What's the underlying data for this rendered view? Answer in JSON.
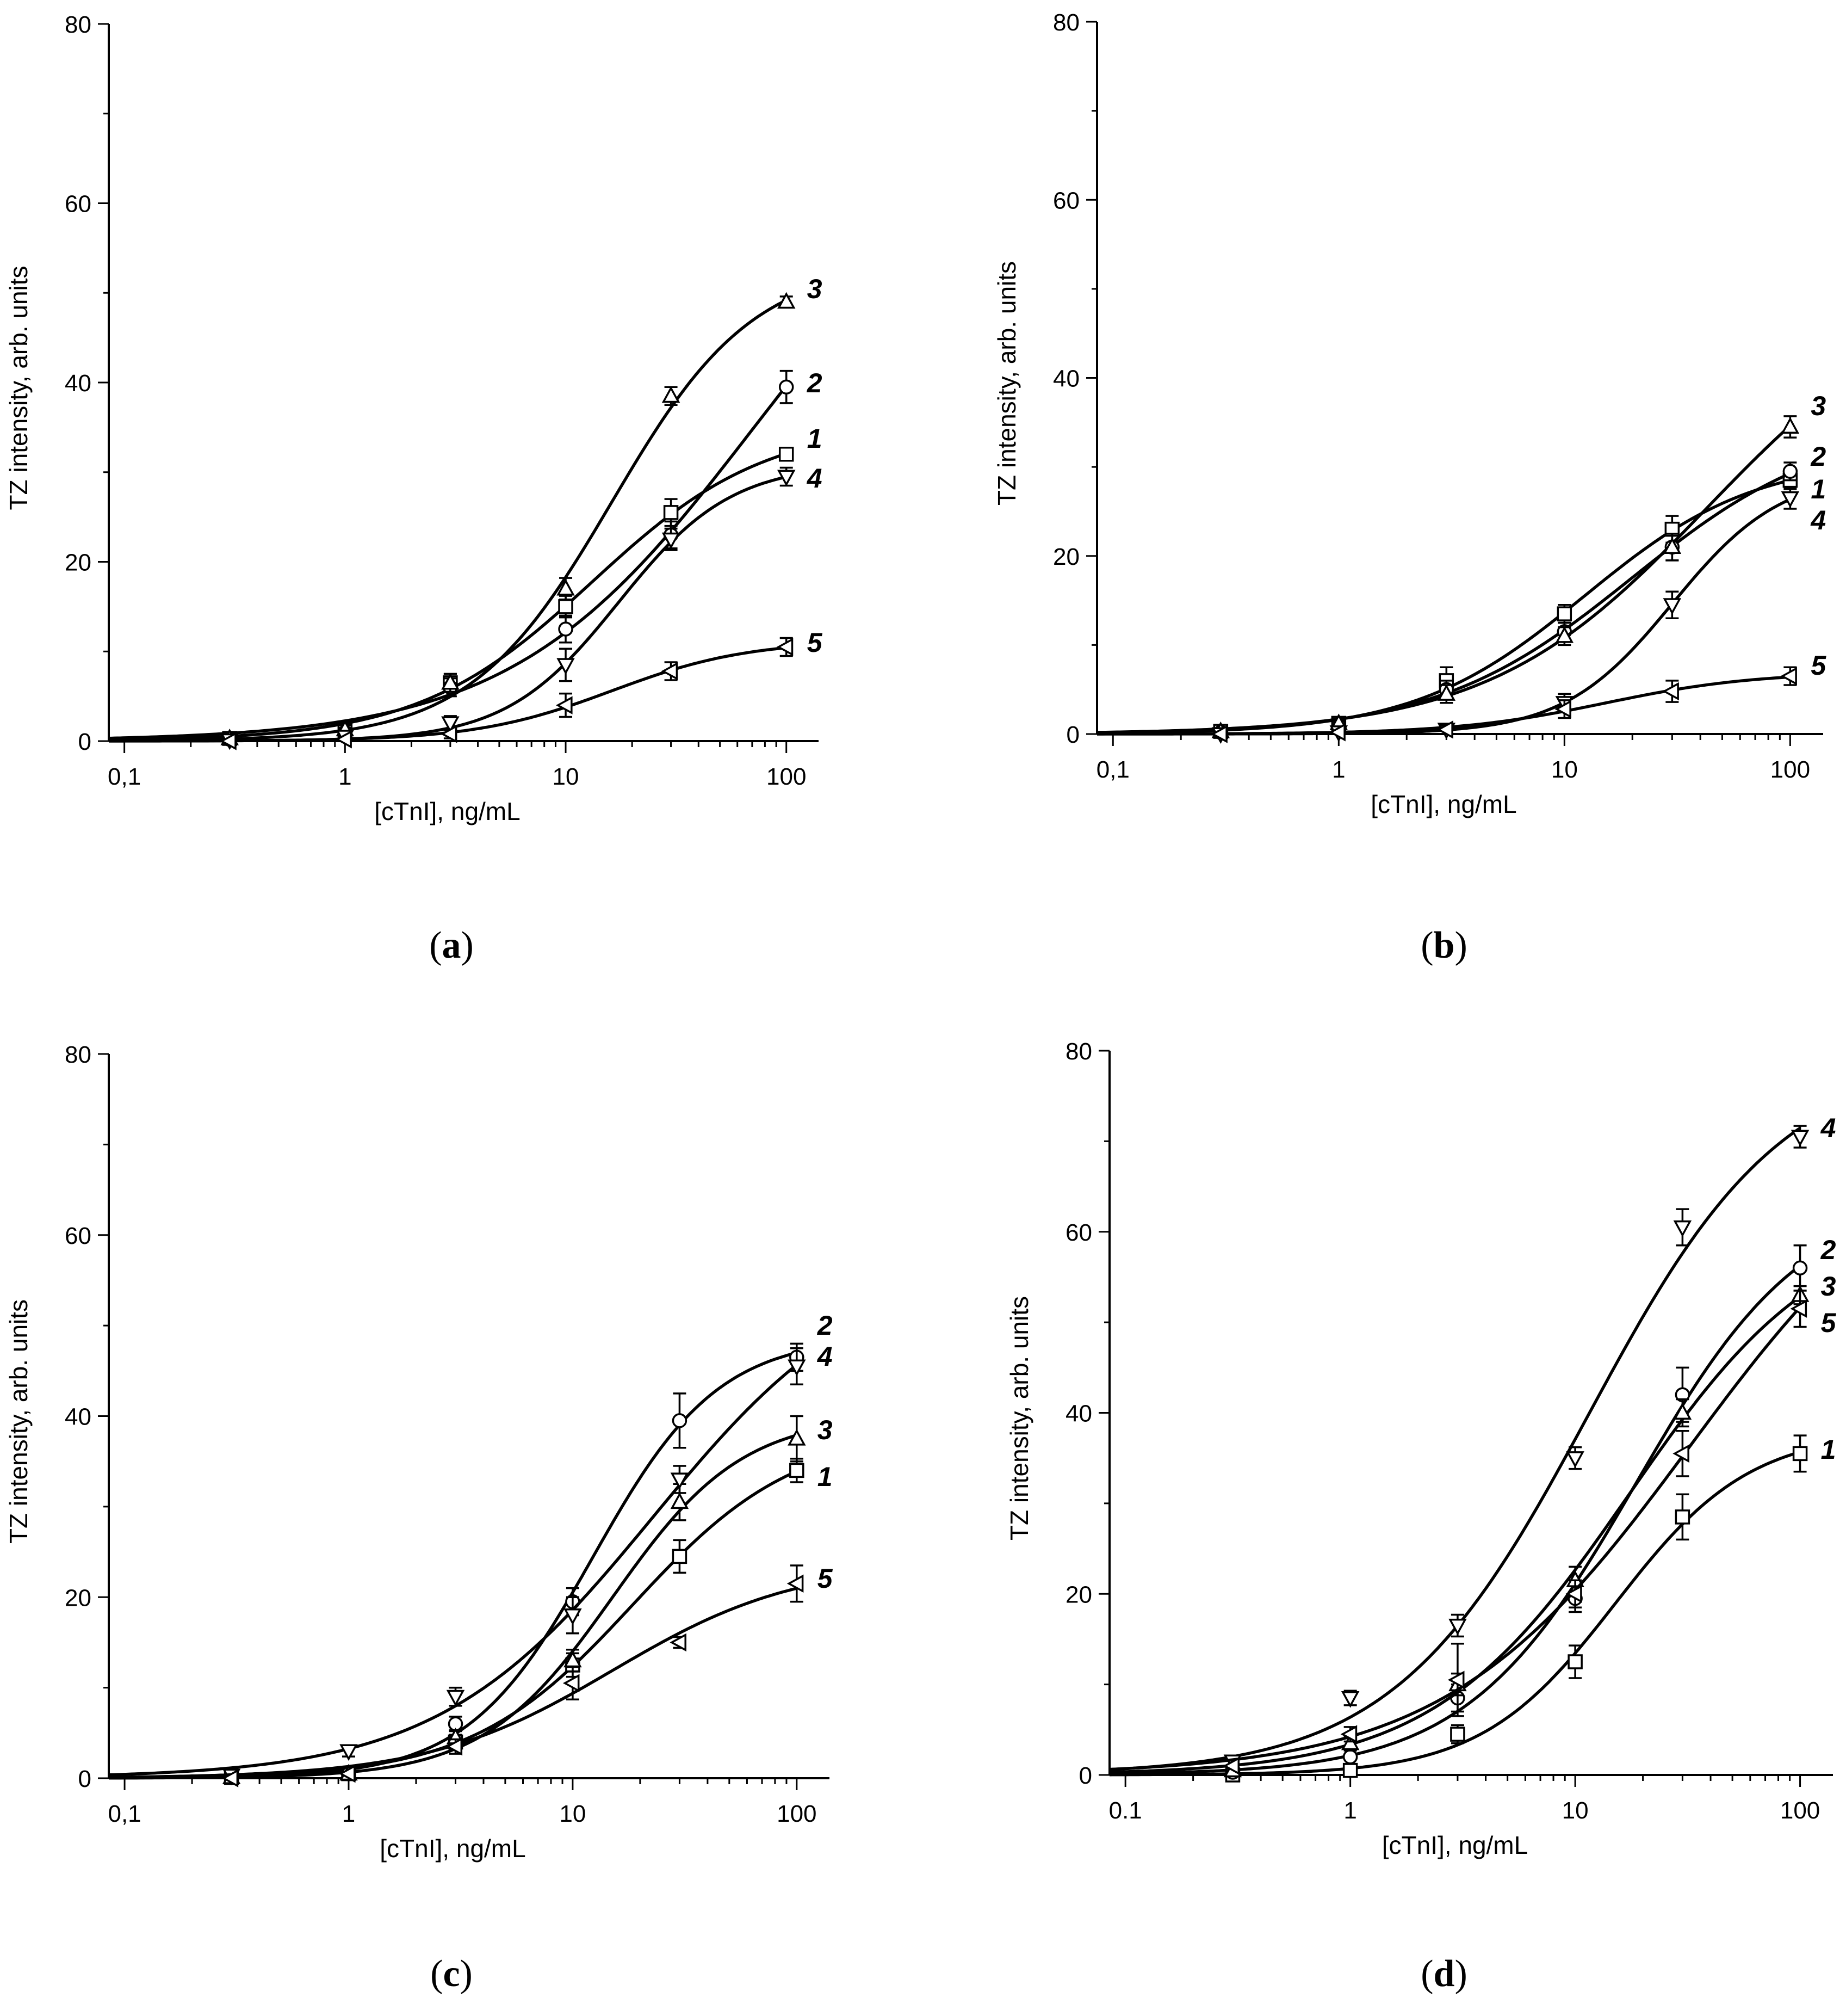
{
  "figure": {
    "panels": [
      {
        "id": "a",
        "title": "(a)",
        "title_letter": "a",
        "xlabel": "[cTnI], ng/mL",
        "ylabel": "TZ intensity, arb. units",
        "x_tick_labels": [
          "0,1",
          "1",
          "10",
          "100"
        ],
        "y_tick_labels": [
          "0",
          "20",
          "40",
          "60",
          "80"
        ]
      },
      {
        "id": "b",
        "title": "(b)",
        "title_letter": "b",
        "xlabel": "[cTnI], ng/mL",
        "ylabel": "TZ intensity, arb. units",
        "x_tick_labels": [
          "0,1",
          "1",
          "10",
          "100"
        ],
        "y_tick_labels": [
          "0",
          "20",
          "40",
          "60",
          "80"
        ]
      },
      {
        "id": "c",
        "title": "(c)",
        "title_letter": "c",
        "xlabel": "[cTnI], ng/mL",
        "ylabel": "TZ intensity, arb. units",
        "x_tick_labels": [
          "0,1",
          "1",
          "10",
          "100"
        ],
        "y_tick_labels": [
          "0",
          "20",
          "40",
          "60",
          "80"
        ]
      },
      {
        "id": "d",
        "title": "(d)",
        "title_letter": "d",
        "xlabel": "[cTnI], ng/mL",
        "ylabel": "TZ intensity, arb. units",
        "x_tick_labels": [
          "0.1",
          "1",
          "10",
          "100"
        ],
        "y_tick_labels": [
          "0",
          "20",
          "40",
          "60",
          "80"
        ]
      }
    ]
  },
  "chart_data": [
    {
      "panel": "a",
      "type": "scatter",
      "x_scale": "log",
      "xlim": [
        0.085,
        140
      ],
      "ylim": [
        0,
        80
      ],
      "x": [
        0.3,
        1,
        3,
        10,
        30,
        100
      ],
      "series": [
        {
          "name": "1",
          "marker": "square",
          "values": [
            0.3,
            1.2,
            6.5,
            15.0,
            25.5,
            32.0
          ],
          "errors": [
            0.3,
            0.5,
            1.0,
            1.2,
            1.5,
            0.5
          ]
        },
        {
          "name": "2",
          "marker": "circle",
          "values": [
            0.2,
            1.0,
            6.0,
            12.5,
            23.0,
            39.5
          ],
          "errors": [
            0.3,
            0.5,
            1.0,
            1.5,
            1.5,
            1.8
          ]
        },
        {
          "name": "3",
          "marker": "triangle-up",
          "values": [
            0.3,
            1.3,
            6.5,
            17.0,
            38.5,
            49.0
          ],
          "errors": [
            0.3,
            0.5,
            1.0,
            1.2,
            1.0,
            0.6
          ]
        },
        {
          "name": "4",
          "marker": "triangle-down",
          "values": [
            0.1,
            0.5,
            2.0,
            8.5,
            22.5,
            29.5
          ],
          "errors": [
            0.2,
            0.4,
            0.8,
            1.8,
            1.2,
            1.0
          ]
        },
        {
          "name": "5",
          "marker": "triangle-left",
          "values": [
            0.0,
            0.2,
            0.8,
            4.0,
            7.8,
            10.5
          ],
          "errors": [
            0.2,
            0.3,
            0.5,
            1.3,
            1.0,
            1.0
          ]
        }
      ]
    },
    {
      "panel": "b",
      "type": "scatter",
      "x_scale": "log",
      "xlim": [
        0.085,
        140
      ],
      "ylim": [
        0,
        80
      ],
      "x": [
        0.3,
        1,
        3,
        10,
        30,
        100
      ],
      "series": [
        {
          "name": "1",
          "marker": "square",
          "values": [
            0.3,
            1.2,
            6.0,
            13.5,
            23.0,
            28.5
          ],
          "errors": [
            0.3,
            0.5,
            1.5,
            1.0,
            1.5,
            1.0
          ]
        },
        {
          "name": "2",
          "marker": "circle",
          "values": [
            0.2,
            1.0,
            5.0,
            11.5,
            21.0,
            29.5
          ],
          "errors": [
            0.3,
            0.5,
            1.0,
            1.0,
            1.5,
            1.0
          ]
        },
        {
          "name": "3",
          "marker": "triangle-up",
          "values": [
            0.3,
            1.2,
            4.5,
            11.0,
            21.0,
            34.5
          ],
          "errors": [
            0.3,
            0.5,
            1.0,
            1.0,
            1.5,
            1.2
          ]
        },
        {
          "name": "4",
          "marker": "triangle-down",
          "values": [
            0.0,
            0.2,
            0.5,
            3.5,
            14.5,
            26.5
          ],
          "errors": [
            0.2,
            0.3,
            0.5,
            1.0,
            1.5,
            1.2
          ]
        },
        {
          "name": "5",
          "marker": "triangle-left",
          "values": [
            0.0,
            0.2,
            0.5,
            2.8,
            4.8,
            6.5
          ],
          "errors": [
            0.2,
            0.3,
            0.5,
            1.0,
            1.2,
            1.0
          ]
        }
      ]
    },
    {
      "panel": "c",
      "type": "scatter",
      "x_scale": "log",
      "xlim": [
        0.085,
        140
      ],
      "ylim": [
        0,
        80
      ],
      "x": [
        0.3,
        1,
        3,
        10,
        30,
        100
      ],
      "series": [
        {
          "name": "1",
          "marker": "square",
          "values": [
            0.1,
            0.5,
            4.0,
            12.5,
            24.5,
            34.0
          ],
          "errors": [
            0.2,
            0.4,
            0.8,
            1.3,
            1.8,
            1.3
          ]
        },
        {
          "name": "2",
          "marker": "circle",
          "values": [
            0.1,
            0.5,
            6.0,
            19.5,
            39.5,
            46.5
          ],
          "errors": [
            0.2,
            0.4,
            0.8,
            1.5,
            3.0,
            1.5
          ]
        },
        {
          "name": "3",
          "marker": "triangle-up",
          "values": [
            0.1,
            0.5,
            4.5,
            13.0,
            30.5,
            37.5
          ],
          "errors": [
            0.2,
            0.4,
            0.8,
            1.2,
            2.0,
            2.5
          ]
        },
        {
          "name": "4",
          "marker": "triangle-down",
          "values": [
            0.3,
            3.0,
            9.0,
            18.0,
            33.0,
            45.5
          ],
          "errors": [
            0.3,
            0.6,
            1.0,
            2.0,
            1.5,
            2.0
          ]
        },
        {
          "name": "5",
          "marker": "triangle-left",
          "values": [
            0.0,
            0.5,
            3.5,
            10.5,
            15.0,
            21.5
          ],
          "errors": [
            0.2,
            0.4,
            0.8,
            1.8,
            0.6,
            2.0
          ]
        }
      ]
    },
    {
      "panel": "d",
      "type": "scatter",
      "x_scale": "log",
      "xlim": [
        0.085,
        140
      ],
      "ylim": [
        0,
        80
      ],
      "x": [
        0.3,
        1,
        3,
        10,
        30,
        100
      ],
      "series": [
        {
          "name": "1",
          "marker": "square",
          "values": [
            0.0,
            0.5,
            4.5,
            12.5,
            28.5,
            35.5
          ],
          "errors": [
            0.3,
            0.5,
            1.0,
            1.8,
            2.5,
            2.0
          ]
        },
        {
          "name": "2",
          "marker": "circle",
          "values": [
            0.3,
            2.0,
            8.5,
            19.5,
            42.0,
            56.0
          ],
          "errors": [
            0.3,
            0.8,
            1.5,
            1.5,
            3.0,
            2.5
          ]
        },
        {
          "name": "3",
          "marker": "triangle-up",
          "values": [
            0.5,
            3.5,
            10.0,
            21.5,
            40.0,
            53.0
          ],
          "errors": [
            0.3,
            0.8,
            1.2,
            1.5,
            1.5,
            1.0
          ]
        },
        {
          "name": "4",
          "marker": "triangle-down",
          "values": [
            1.5,
            8.5,
            16.5,
            35.0,
            60.5,
            70.5
          ],
          "errors": [
            0.5,
            0.8,
            1.2,
            1.2,
            2.0,
            1.2
          ]
        },
        {
          "name": "5",
          "marker": "triangle-left",
          "values": [
            1.0,
            4.5,
            10.5,
            20.0,
            35.5,
            51.5
          ],
          "errors": [
            0.3,
            0.8,
            4.0,
            1.5,
            2.5,
            2.0
          ]
        }
      ]
    }
  ]
}
